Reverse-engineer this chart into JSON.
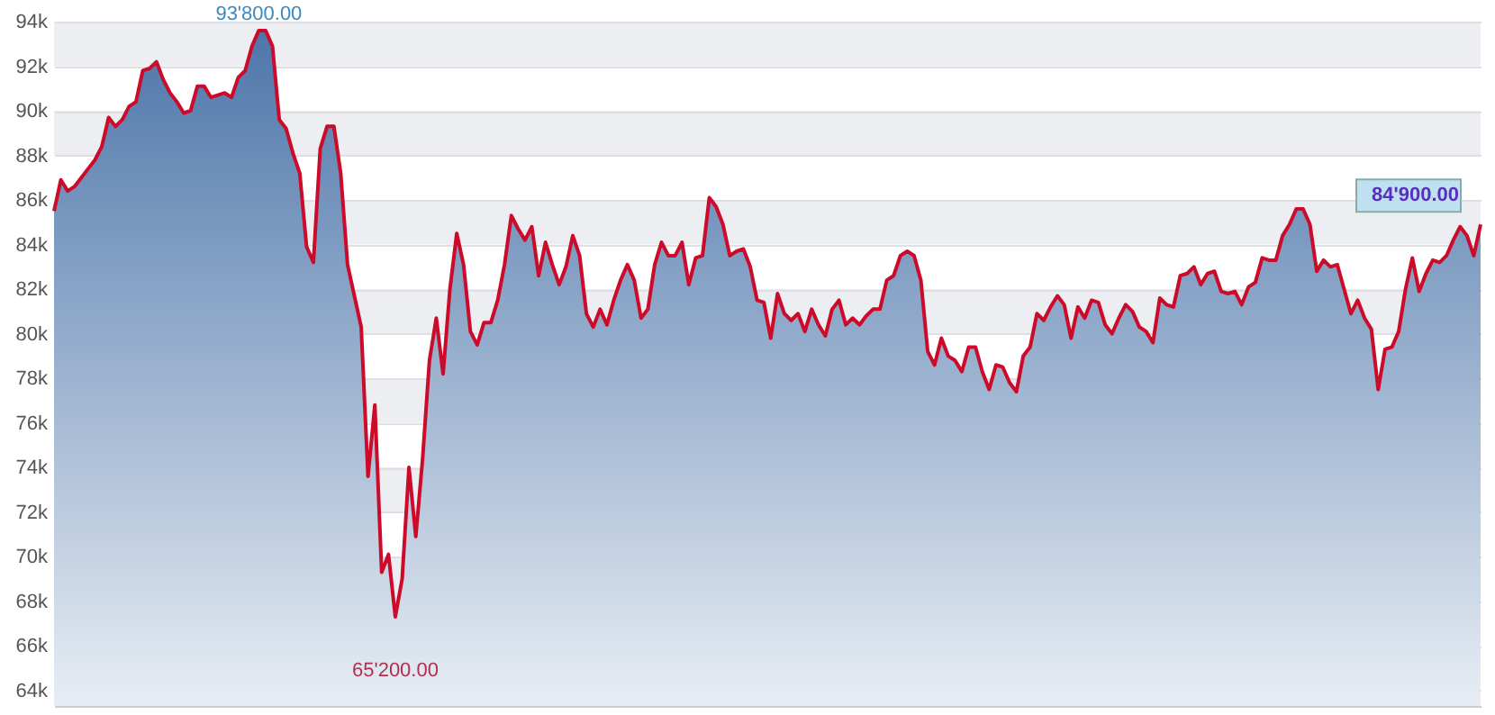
{
  "chart_data": {
    "type": "area",
    "categories": [
      null,
      null,
      null,
      null,
      null,
      null,
      null,
      null,
      null,
      null,
      null,
      null,
      null,
      null,
      null,
      null,
      null,
      null,
      null,
      null,
      null,
      null,
      null,
      null,
      null,
      null,
      null,
      null,
      null,
      null,
      null,
      null,
      null,
      null,
      null,
      null,
      null,
      null,
      null,
      null,
      null,
      null,
      null,
      null,
      null,
      null,
      null,
      null,
      null,
      null,
      null,
      null,
      null,
      null,
      null,
      null,
      null,
      null,
      null,
      null,
      null,
      null,
      null,
      null,
      null,
      null,
      null,
      null,
      null,
      null,
      null,
      null,
      null,
      null,
      null,
      null,
      null,
      null,
      null,
      null,
      null,
      null,
      null,
      null,
      null,
      null,
      null,
      null,
      null,
      null,
      null,
      null,
      null,
      null,
      null,
      null,
      null,
      null,
      null,
      null,
      null,
      null,
      null,
      null,
      null,
      null,
      null,
      null,
      null,
      null,
      null,
      null,
      null,
      null,
      null,
      null,
      null,
      null,
      null,
      null,
      null,
      null,
      null,
      null,
      null,
      null,
      null,
      null,
      null,
      null,
      null,
      null,
      null,
      null,
      null,
      null,
      null,
      null,
      null,
      null,
      null,
      null,
      null,
      null,
      null,
      null,
      null,
      null,
      null,
      null,
      null,
      null,
      null,
      null,
      null,
      null,
      null,
      null,
      null,
      null,
      null,
      null,
      null,
      null,
      null,
      null,
      null,
      null,
      null,
      null,
      null,
      null,
      null,
      null,
      null,
      null,
      null,
      null,
      null,
      null,
      null,
      null,
      null,
      null,
      null,
      null,
      null,
      null,
      null,
      null,
      null,
      null,
      null,
      null,
      null,
      null,
      null,
      null,
      null,
      null,
      null,
      null,
      null,
      null,
      null,
      null,
      null,
      null,
      null,
      null
    ],
    "series": [
      {
        "color": "#cc0a2a",
        "values": [
          85500,
          86900,
          86400,
          86600,
          87000,
          87400,
          87800,
          88400,
          89700,
          89300,
          89600,
          90200,
          90400,
          91800,
          91900,
          92200,
          91400,
          90800,
          90400,
          89900,
          90000,
          91100,
          91100,
          90600,
          90700,
          90800,
          90600,
          91500,
          91800,
          92900,
          93600,
          93600,
          92900,
          89600,
          89200,
          88100,
          87200,
          83900,
          83200,
          88300,
          89300,
          89300,
          87200,
          83100,
          81700,
          80300,
          73600,
          76800,
          69300,
          70100,
          67300,
          69000,
          74000,
          70900,
          74400,
          78800,
          80700,
          78200,
          82000,
          84500,
          83100,
          80100,
          79500,
          80500,
          80500,
          81500,
          83100,
          85300,
          84700,
          84200,
          84800,
          82600,
          84100,
          83100,
          82200,
          83000,
          84400,
          83500,
          80900,
          80300,
          81100,
          80400,
          81500,
          82400,
          83100,
          82400,
          80700,
          81100,
          83100,
          84100,
          83500,
          83500,
          84100,
          82200,
          83400,
          83500,
          86100,
          85700,
          84900,
          83500,
          83700,
          83800,
          83000,
          81500,
          81400,
          79800,
          81800,
          80900,
          80600,
          80900,
          80100,
          81100,
          80400,
          79900,
          81100,
          81500,
          80400,
          80700,
          80400,
          80800,
          81100,
          81100,
          82400,
          82600,
          83500,
          83700,
          83500,
          82400,
          79200,
          78600,
          79800,
          79000,
          78800,
          78300,
          79400,
          79400,
          78300,
          77500,
          78600,
          78500,
          77800,
          77400,
          79000,
          79400,
          80900,
          80600,
          81200,
          81700,
          81300,
          79800,
          81200,
          80700,
          81500,
          81400,
          80400,
          80000,
          80700,
          81300,
          81000,
          80300,
          80100,
          79600,
          81600,
          81300,
          81200,
          82600,
          82700,
          83000,
          82200,
          82700,
          82800,
          81900,
          81800,
          81900,
          81300,
          82100,
          82300,
          83400,
          83300,
          83300,
          84400,
          84900,
          85600,
          85600,
          84900,
          82800,
          83300,
          83000,
          83100,
          82000,
          80900,
          81500,
          80700,
          80200,
          77500,
          79300,
          79400,
          80100,
          82000,
          83400,
          81900,
          82700,
          83300,
          83200,
          83500,
          84200,
          84800,
          84400,
          83500,
          84900
        ]
      }
    ],
    "ylim": [
      63300,
      94000
    ],
    "yticks": [
      {
        "value": 64000,
        "label": "64k"
      },
      {
        "value": 66000,
        "label": "66k"
      },
      {
        "value": 68000,
        "label": "68k"
      },
      {
        "value": 70000,
        "label": "70k"
      },
      {
        "value": 72000,
        "label": "72k"
      },
      {
        "value": 74000,
        "label": "74k"
      },
      {
        "value": 76000,
        "label": "76k"
      },
      {
        "value": 78000,
        "label": "78k"
      },
      {
        "value": 80000,
        "label": "80k"
      },
      {
        "value": 82000,
        "label": "82k"
      },
      {
        "value": 84000,
        "label": "84k"
      },
      {
        "value": 86000,
        "label": "86k"
      },
      {
        "value": 88000,
        "label": "88k"
      },
      {
        "value": 90000,
        "label": "90k"
      },
      {
        "value": 92000,
        "label": "92k"
      },
      {
        "value": 94000,
        "label": "94k"
      }
    ],
    "grid": "y",
    "annotations": [
      "93'800.00",
      "65'200.00",
      "84'900.00"
    ]
  }
}
